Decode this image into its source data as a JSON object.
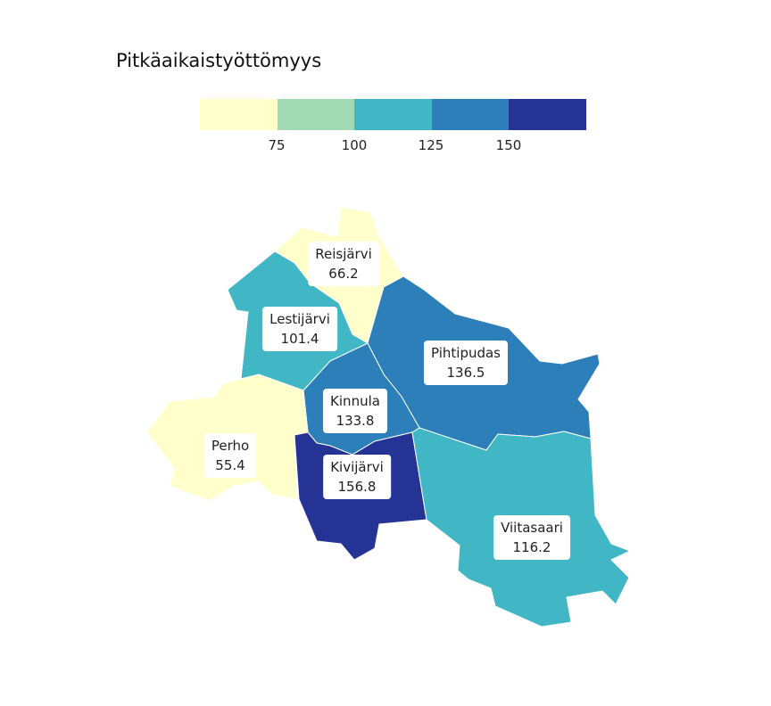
{
  "title": "Pitkäaikaistyöttömyys",
  "legend": {
    "colors": [
      "#ffffcc",
      "#a1dab4",
      "#41b6c4",
      "#2c7fb8",
      "#253494"
    ],
    "ticks": [
      "75",
      "100",
      "125",
      "150"
    ]
  },
  "regions": {
    "reisjarvi": {
      "name": "Reisjärvi",
      "value": "66.2",
      "color": "#ffffcc"
    },
    "lestijarvi": {
      "name": "Lestijärvi",
      "value": "101.4",
      "color": "#41b6c4"
    },
    "pihtipudas": {
      "name": "Pihtipudas",
      "value": "136.5",
      "color": "#2c7fb8"
    },
    "kinnula": {
      "name": "Kinnula",
      "value": "133.8",
      "color": "#2c7fb8"
    },
    "perho": {
      "name": "Perho",
      "value": "55.4",
      "color": "#ffffcc"
    },
    "kivijarvi": {
      "name": "Kivijärvi",
      "value": "156.8",
      "color": "#253494"
    },
    "viitasaari": {
      "name": "Viitasaari",
      "value": "116.2",
      "color": "#41b6c4"
    }
  }
}
